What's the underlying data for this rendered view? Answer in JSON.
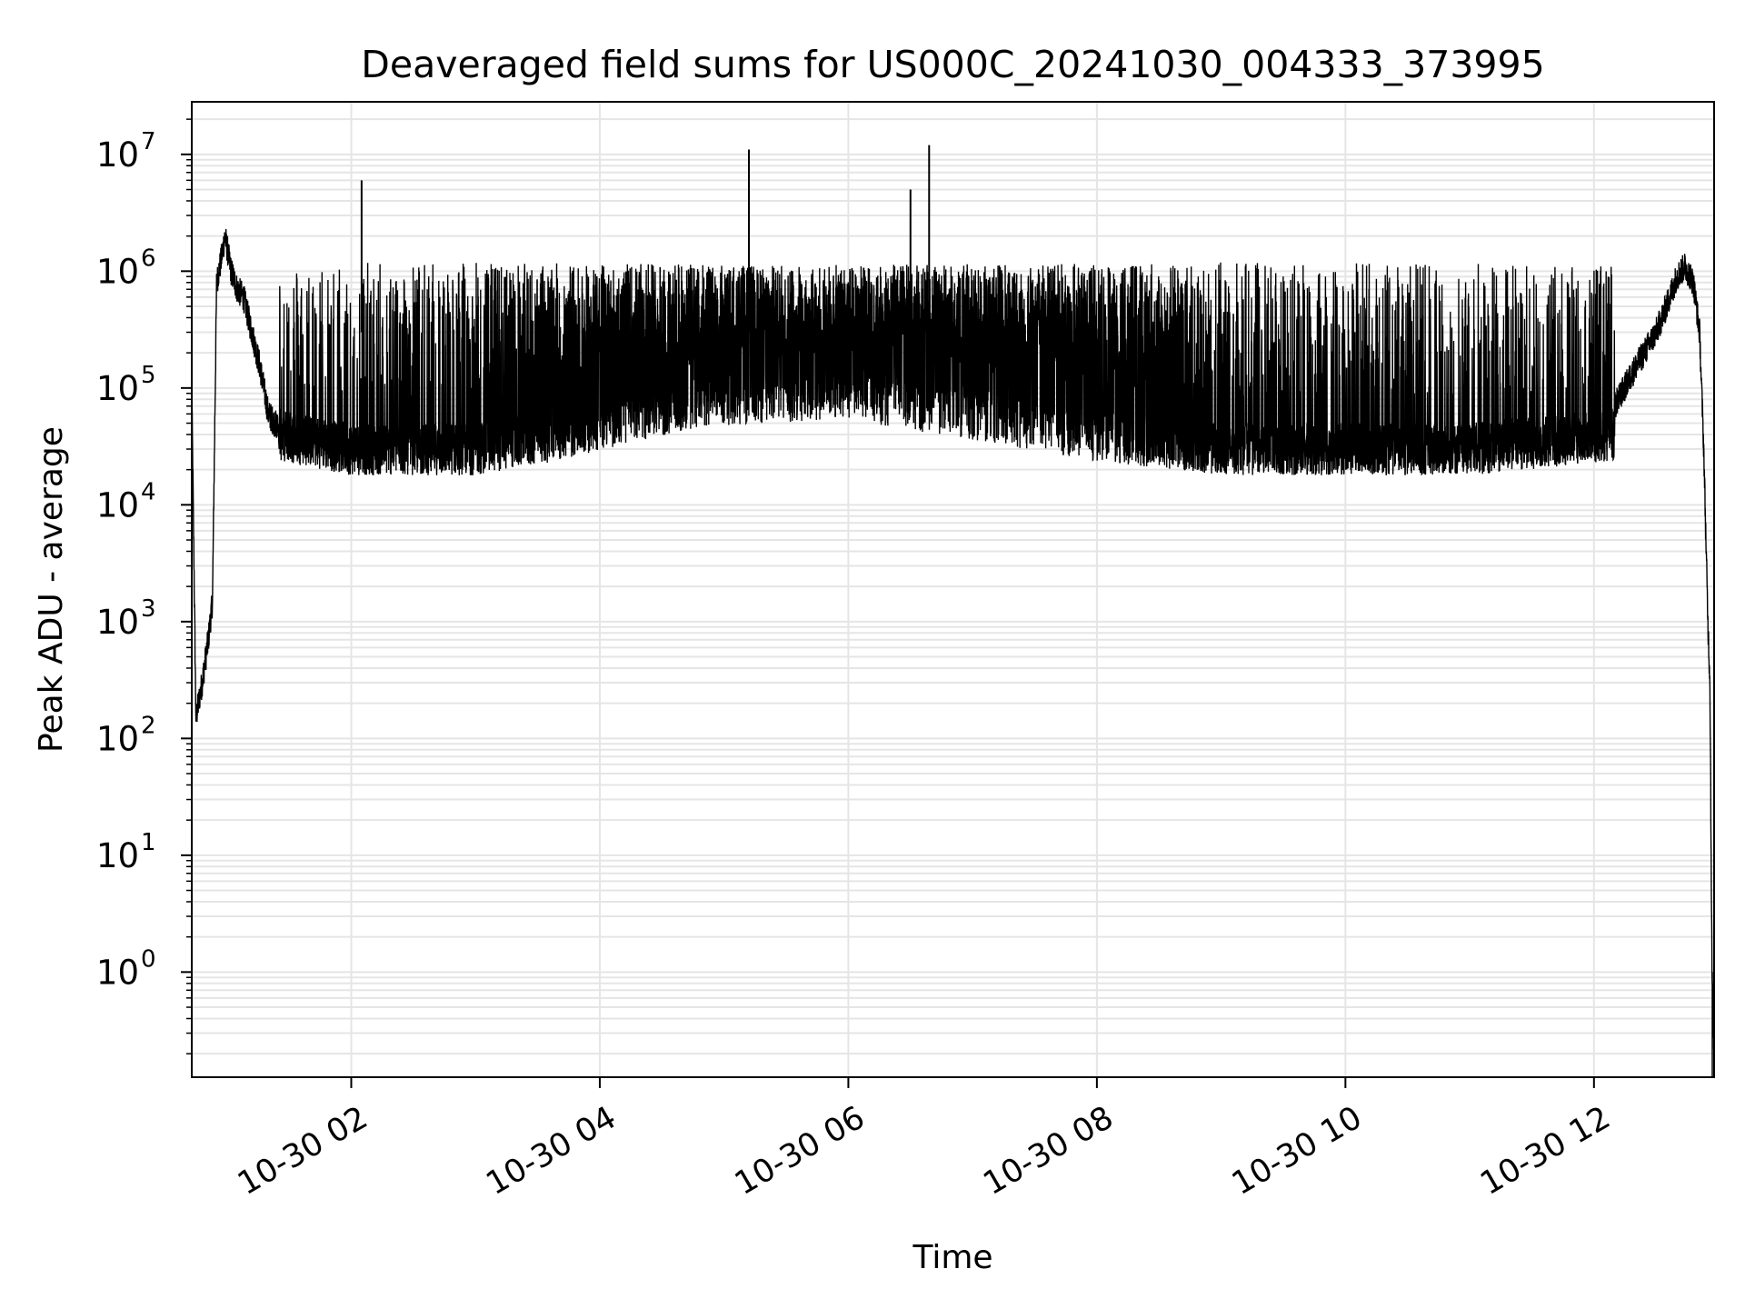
{
  "chart_data": {
    "type": "line",
    "title": "Deaveraged field sums for US000C_20241030_004333_373995",
    "xlabel": "Time",
    "ylabel": "Peak ADU - average",
    "yscale": "log",
    "grid": true,
    "legend": "none",
    "xlim": [
      "2024-10-30 00:43",
      "2024-10-30 12:58"
    ],
    "ylim_exponent": [
      -0.9,
      7.45
    ],
    "x_ticks": [
      {
        "label": "10-30 02",
        "value": "2024-10-30 02:00"
      },
      {
        "label": "10-30 04",
        "value": "2024-10-30 04:00"
      },
      {
        "label": "10-30 06",
        "value": "2024-10-30 06:00"
      },
      {
        "label": "10-30 08",
        "value": "2024-10-30 08:00"
      },
      {
        "label": "10-30 10",
        "value": "2024-10-30 10:00"
      },
      {
        "label": "10-30 12",
        "value": "2024-10-30 12:00"
      }
    ],
    "y_ticks": [
      {
        "base": "10",
        "exp": "7",
        "value": 10000000
      },
      {
        "base": "10",
        "exp": "6",
        "value": 1000000
      },
      {
        "base": "10",
        "exp": "5",
        "value": 100000
      },
      {
        "base": "10",
        "exp": "4",
        "value": 10000
      },
      {
        "base": "10",
        "exp": "3",
        "value": 1000
      },
      {
        "base": "10",
        "exp": "2",
        "value": 100
      },
      {
        "base": "10",
        "exp": "1",
        "value": 10
      },
      {
        "base": "10",
        "exp": "0",
        "value": 1
      }
    ],
    "line_color": "#000000",
    "grid_color": "#e5e5e5",
    "series": [
      {
        "x": [
          "2024-10-30 00:43",
          "2024-10-30 00:45",
          "2024-10-30 00:48",
          "2024-10-30 00:51",
          "2024-10-30 00:53",
          "2024-10-30 00:55",
          "2024-10-30 00:57",
          "2024-10-30 00:59",
          "2024-10-30 01:02",
          "2024-10-30 01:05",
          "2024-10-30 01:08",
          "2024-10-30 01:12",
          "2024-10-30 01:16",
          "2024-10-30 01:20",
          "2024-10-30 01:25",
          "2024-10-30 01:40",
          "2024-10-30 02:00",
          "2024-10-30 02:30",
          "2024-10-30 03:00",
          "2024-10-30 03:20",
          "2024-10-30 03:40",
          "2024-10-30 04:00",
          "2024-10-30 04:20",
          "2024-10-30 04:40",
          "2024-10-30 05:00",
          "2024-10-30 05:30",
          "2024-10-30 06:00",
          "2024-10-30 06:30",
          "2024-10-30 07:00",
          "2024-10-30 07:30",
          "2024-10-30 08:00",
          "2024-10-30 08:30",
          "2024-10-30 09:00",
          "2024-10-30 09:30",
          "2024-10-30 10:00",
          "2024-10-30 10:30",
          "2024-10-30 11:00",
          "2024-10-30 11:30",
          "2024-10-30 12:00",
          "2024-10-30 12:10",
          "2024-10-30 12:20",
          "2024-10-30 12:30",
          "2024-10-30 12:35",
          "2024-10-30 12:40",
          "2024-10-30 12:44",
          "2024-10-30 12:48",
          "2024-10-30 12:51",
          "2024-10-30 12:53",
          "2024-10-30 12:55",
          "2024-10-30 12:56",
          "2024-10-30 12:57",
          "2024-10-30 12:58"
        ],
        "y": [
          100000,
          150,
          300,
          700,
          1500,
          800000,
          1200000,
          2000000,
          1000000,
          700000,
          600000,
          300000,
          150000,
          60000,
          45000,
          40000,
          35000,
          38000,
          60000,
          90000,
          130000,
          200000,
          300000,
          350000,
          400000,
          450000,
          500000,
          450000,
          400000,
          350000,
          300000,
          150000,
          60000,
          50000,
          40000,
          35000,
          35000,
          40000,
          45000,
          70000,
          150000,
          300000,
          500000,
          900000,
          1100000,
          800000,
          300000,
          30000,
          1000,
          300,
          1,
          0.2
        ]
      }
    ],
    "spikes": [
      {
        "x": "2024-10-30 02:05",
        "y": 6000000
      },
      {
        "x": "2024-10-30 05:12",
        "y": 11000000
      },
      {
        "x": "2024-10-30 06:30",
        "y": 5000000
      },
      {
        "x": "2024-10-30 06:39",
        "y": 12000000
      }
    ],
    "noise_band": {
      "note": "dense oscillation between a lower floor and ~1e6 ceiling",
      "floor_values": [
        40000,
        30000,
        30000,
        40000,
        60000,
        80000,
        90000,
        60000,
        40000,
        30000,
        30000,
        30000,
        40000
      ],
      "floor_x": [
        "2024-10-30 01:25",
        "2024-10-30 02:00",
        "2024-10-30 03:00",
        "2024-10-30 03:40",
        "2024-10-30 04:20",
        "2024-10-30 05:00",
        "2024-10-30 06:00",
        "2024-10-30 07:00",
        "2024-10-30 08:00",
        "2024-10-30 09:00",
        "2024-10-30 10:00",
        "2024-10-30 11:00",
        "2024-10-30 12:10"
      ],
      "ceiling": 1000000
    }
  }
}
